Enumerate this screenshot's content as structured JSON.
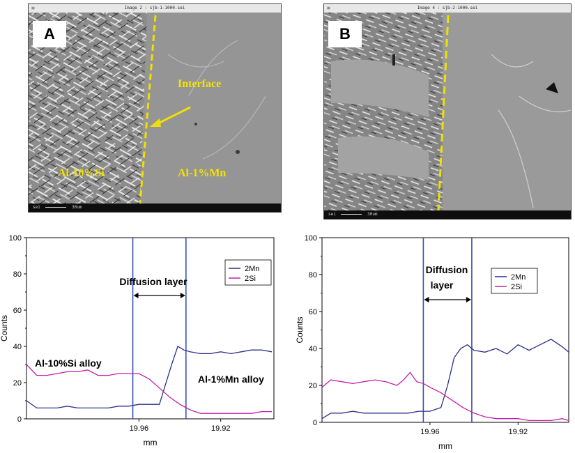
{
  "panels": [
    {
      "label": "A",
      "window_title": "Image 2 : sjb-1-1000.sei",
      "status_left": "sei",
      "status_scale": "30um",
      "annotations": {
        "interface": "Interface",
        "left_alloy": "Al-10%Si",
        "right_alloy": "Al-1%Mn"
      }
    },
    {
      "label": "B",
      "window_title": "Image 4 : sjb-2-1000.sei",
      "status_left": "sei",
      "status_scale": "30um"
    }
  ],
  "colors": {
    "mn_series": "#2b2f8a",
    "si_series": "#c21fa8",
    "boundary_lines": "#3a4fc0",
    "interface_dash": "#f0e000"
  },
  "chart_data": [
    {
      "type": "line",
      "xlabel": "mm",
      "ylabel": "Counts",
      "ylim": [
        0,
        100
      ],
      "yticks": [
        0,
        20,
        40,
        60,
        80,
        100
      ],
      "xticks": [
        "19.96",
        "19.92"
      ],
      "legend_position": "top-right",
      "diffusion_label": "Diffusion layer",
      "annotations": [
        "Al-10%Si alloy",
        "Al-1%Mn alloy"
      ],
      "boundaries_x": [
        19.963,
        19.937
      ],
      "xlim": [
        20.015,
        19.894
      ],
      "series": [
        {
          "name": "2Mn",
          "x": [
            20.015,
            20.01,
            20.005,
            20.0,
            19.995,
            19.99,
            19.985,
            19.98,
            19.975,
            19.97,
            19.965,
            19.96,
            19.955,
            19.95,
            19.947,
            19.944,
            19.941,
            19.938,
            19.935,
            19.93,
            19.925,
            19.92,
            19.915,
            19.91,
            19.905,
            19.9,
            19.895
          ],
          "values": [
            10,
            6,
            6,
            6,
            7,
            6,
            6,
            6,
            6,
            7,
            7,
            8,
            8,
            8,
            19,
            30,
            40,
            38,
            37,
            36,
            36,
            37,
            36,
            37,
            38,
            38,
            37
          ]
        },
        {
          "name": "2Si",
          "x": [
            20.015,
            20.01,
            20.005,
            20.0,
            19.995,
            19.99,
            19.985,
            19.98,
            19.975,
            19.97,
            19.965,
            19.96,
            19.955,
            19.95,
            19.945,
            19.94,
            19.935,
            19.93,
            19.925,
            19.92,
            19.915,
            19.91,
            19.905,
            19.9,
            19.895
          ],
          "values": [
            30,
            24,
            24,
            25,
            26,
            26,
            27,
            24,
            24,
            25,
            25,
            25,
            22,
            17,
            12,
            8,
            5,
            3,
            3,
            3,
            3,
            3,
            3,
            4,
            4
          ]
        }
      ]
    },
    {
      "type": "line",
      "xlabel": "mm",
      "ylabel": "Counts",
      "ylim": [
        0,
        100
      ],
      "yticks": [
        0,
        20,
        40,
        60,
        80,
        100
      ],
      "xticks": [
        "19.96",
        "19.92"
      ],
      "legend_position": "top-right",
      "diffusion_label_lines": [
        "Diffusion",
        "layer"
      ],
      "boundaries_x": [
        19.963,
        19.941
      ],
      "xlim": [
        20.009,
        19.897
      ],
      "series": [
        {
          "name": "2Mn",
          "x": [
            20.009,
            20.005,
            20.0,
            19.995,
            19.99,
            19.985,
            19.98,
            19.975,
            19.97,
            19.965,
            19.96,
            19.955,
            19.952,
            19.949,
            19.946,
            19.943,
            19.94,
            19.935,
            19.93,
            19.925,
            19.92,
            19.915,
            19.91,
            19.905,
            19.9,
            19.897
          ],
          "values": [
            2,
            5,
            5,
            6,
            5,
            5,
            5,
            5,
            5,
            6,
            6,
            8,
            20,
            35,
            40,
            42,
            39,
            38,
            40,
            37,
            42,
            39,
            42,
            45,
            41,
            38
          ]
        },
        {
          "name": "2Si",
          "x": [
            20.009,
            20.005,
            20.0,
            19.995,
            19.99,
            19.985,
            19.98,
            19.975,
            19.972,
            19.969,
            19.966,
            19.963,
            19.96,
            19.955,
            19.95,
            19.945,
            19.94,
            19.935,
            19.93,
            19.925,
            19.92,
            19.915,
            19.91,
            19.905,
            19.9,
            19.897
          ],
          "values": [
            19,
            23,
            22,
            21,
            22,
            23,
            22,
            20,
            23,
            27,
            22,
            21,
            19,
            16,
            12,
            8,
            5,
            3,
            2,
            2,
            2,
            1,
            1,
            1,
            2,
            1
          ]
        }
      ]
    }
  ]
}
